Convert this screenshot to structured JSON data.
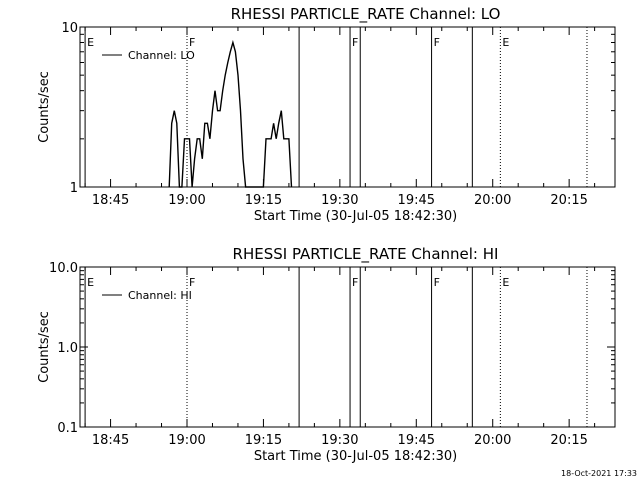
{
  "footer": {
    "timestamp": "18-Oct-2021 17:33"
  },
  "chart_data": [
    {
      "type": "line",
      "title": "RHESSI PARTICLE_RATE Channel: LO",
      "xlabel": "Start Time (30-Jul-05 18:42:30)",
      "ylabel": "Counts/sec",
      "yscale": "log",
      "ylim": [
        1,
        10
      ],
      "xlim": [
        "18:39",
        "20:24"
      ],
      "x_tick_labels": [
        "18:45",
        "19:00",
        "19:15",
        "19:30",
        "19:45",
        "20:00",
        "20:15"
      ],
      "y_tick_labels": [
        "1",
        "10"
      ],
      "legend": {
        "position": "top-left",
        "entries": [
          "Channel: LO"
        ]
      },
      "grid": false,
      "series": [
        {
          "name": "Channel: LO",
          "color": "#000000",
          "points": [
            [
              "18:56:30",
              1
            ],
            [
              "18:57:00",
              2.5
            ],
            [
              "18:57:30",
              3
            ],
            [
              "18:58:00",
              2.5
            ],
            [
              "18:58:30",
              1
            ],
            [
              "18:59:00",
              1
            ],
            [
              "18:59:30",
              2
            ],
            [
              "19:00:00",
              2
            ],
            [
              "19:00:30",
              2
            ],
            [
              "19:01:00",
              1
            ],
            [
              "19:01:30",
              1.5
            ],
            [
              "19:02:00",
              2
            ],
            [
              "19:02:30",
              2
            ],
            [
              "19:03:00",
              1.5
            ],
            [
              "19:03:30",
              2.5
            ],
            [
              "19:04:00",
              2.5
            ],
            [
              "19:04:30",
              2
            ],
            [
              "19:05:00",
              3
            ],
            [
              "19:05:30",
              4
            ],
            [
              "19:06:00",
              3
            ],
            [
              "19:06:30",
              3
            ],
            [
              "19:07:00",
              4
            ],
            [
              "19:07:30",
              5
            ],
            [
              "19:08:00",
              6
            ],
            [
              "19:08:30",
              7
            ],
            [
              "19:09:00",
              8
            ],
            [
              "19:09:30",
              7
            ],
            [
              "19:10:00",
              5
            ],
            [
              "19:10:30",
              3
            ],
            [
              "19:11:00",
              1.5
            ],
            [
              "19:11:30",
              1
            ],
            [
              "19:15:00",
              1
            ],
            [
              "19:15:30",
              2
            ],
            [
              "19:16:00",
              2
            ],
            [
              "19:16:30",
              2
            ],
            [
              "19:17:00",
              2.5
            ],
            [
              "19:17:30",
              2
            ],
            [
              "19:18:00",
              2.5
            ],
            [
              "19:18:30",
              3
            ],
            [
              "19:19:00",
              2
            ],
            [
              "19:19:30",
              2
            ],
            [
              "19:20:00",
              2
            ],
            [
              "19:20:30",
              1
            ]
          ]
        }
      ],
      "event_markers": [
        {
          "time": "18:40:00",
          "label": "E",
          "style": "solid"
        },
        {
          "time": "19:00:00",
          "label": "F",
          "style": "dotted"
        },
        {
          "time": "19:22:00",
          "label": "",
          "style": "solid"
        },
        {
          "time": "19:32:00",
          "label": "F",
          "style": "solid"
        },
        {
          "time": "19:34:00",
          "label": "",
          "style": "solid"
        },
        {
          "time": "19:48:00",
          "label": "F",
          "style": "solid"
        },
        {
          "time": "19:56:00",
          "label": "",
          "style": "solid"
        },
        {
          "time": "20:01:30",
          "label": "E",
          "style": "dotted"
        },
        {
          "time": "20:18:30",
          "label": "",
          "style": "dotted"
        }
      ]
    },
    {
      "type": "line",
      "title": "RHESSI PARTICLE_RATE Channel: HI",
      "xlabel": "Start Time (30-Jul-05 18:42:30)",
      "ylabel": "Counts/sec",
      "yscale": "log",
      "ylim": [
        0.1,
        10
      ],
      "xlim": [
        "18:39",
        "20:24"
      ],
      "x_tick_labels": [
        "18:45",
        "19:00",
        "19:15",
        "19:30",
        "19:45",
        "20:00",
        "20:15"
      ],
      "y_tick_labels": [
        "0.1",
        "1.0",
        "10.0"
      ],
      "legend": {
        "position": "top-left",
        "entries": [
          "Channel: HI"
        ]
      },
      "grid": false,
      "series": [
        {
          "name": "Channel: HI",
          "color": "#000000",
          "points": []
        }
      ],
      "event_markers": [
        {
          "time": "18:40:00",
          "label": "E",
          "style": "solid"
        },
        {
          "time": "19:00:00",
          "label": "F",
          "style": "dotted"
        },
        {
          "time": "19:22:00",
          "label": "",
          "style": "solid"
        },
        {
          "time": "19:32:00",
          "label": "F",
          "style": "solid"
        },
        {
          "time": "19:34:00",
          "label": "",
          "style": "solid"
        },
        {
          "time": "19:48:00",
          "label": "F",
          "style": "solid"
        },
        {
          "time": "19:56:00",
          "label": "",
          "style": "solid"
        },
        {
          "time": "20:01:30",
          "label": "E",
          "style": "dotted"
        },
        {
          "time": "20:18:30",
          "label": "",
          "style": "dotted"
        }
      ]
    }
  ]
}
